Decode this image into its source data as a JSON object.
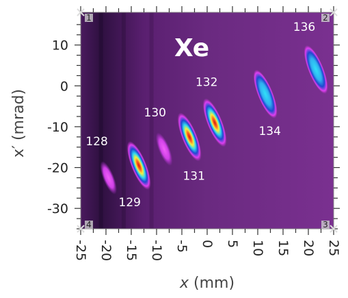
{
  "chart_data": {
    "type": "heatmap",
    "title": "",
    "element_label": "Xe",
    "xlabel_var": "x",
    "xlabel_unit": " (mm)",
    "ylabel": "x′ (mrad)",
    "xlim": [
      -25,
      25
    ],
    "ylim": [
      -35,
      18
    ],
    "x_ticks": [
      -25,
      -20,
      -15,
      -10,
      -5,
      0,
      5,
      10,
      15,
      20,
      25
    ],
    "x_tick_labels": [
      "-25",
      "-20",
      "-15",
      "-10",
      "-5",
      "0",
      "5",
      "10",
      "15",
      "20",
      "25"
    ],
    "y_ticks": [
      10,
      0,
      -10,
      -20,
      -30
    ],
    "y_tick_labels": [
      "10",
      "0",
      "-10",
      "-20",
      "-30"
    ],
    "corner_labels": [
      "1",
      "2",
      "3",
      "4"
    ],
    "background_color": "#5a1e6e",
    "colormap": [
      "#5a1e6e",
      "#b02cc0",
      "#e040f0",
      "#2050d0",
      "#30d0f0",
      "#f0f040",
      "#ff6020",
      "#d02010"
    ],
    "peaks": [
      {
        "label": "128",
        "x": -19.5,
        "y": -22.5,
        "intensity": 0.25
      },
      {
        "label": "129",
        "x": -13.5,
        "y": -19.5,
        "intensity": 1.0
      },
      {
        "label": "130",
        "x": -8.5,
        "y": -15.5,
        "intensity": 0.35
      },
      {
        "label": "131",
        "x": -3.5,
        "y": -12.5,
        "intensity": 0.9
      },
      {
        "label": "132",
        "x": 1.5,
        "y": -9.0,
        "intensity": 1.0
      },
      {
        "label": "134",
        "x": 11.5,
        "y": -2.0,
        "intensity": 0.65
      },
      {
        "label": "136",
        "x": 21.5,
        "y": 4.0,
        "intensity": 0.6
      }
    ]
  }
}
